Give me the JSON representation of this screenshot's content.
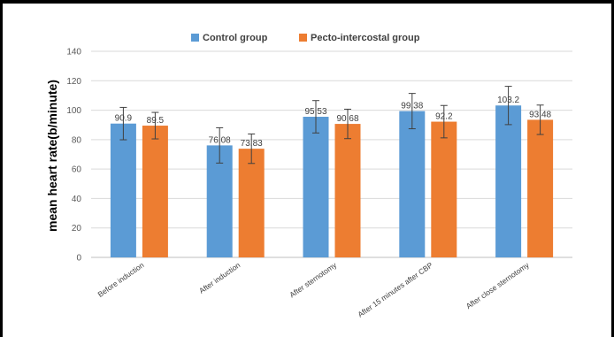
{
  "chart_data": {
    "type": "bar",
    "title": "",
    "xlabel": "",
    "ylabel": "mean heart rate(b/minute)",
    "ylim": [
      0,
      140
    ],
    "yticks": [
      0,
      20,
      40,
      60,
      80,
      100,
      120,
      140
    ],
    "grid": true,
    "legend_position": "top",
    "categories": [
      "Before induction",
      "After induction",
      "After sternotomy",
      "After 15 minutes after CBP",
      "After close sternotomy"
    ],
    "series": [
      {
        "name": "Control group",
        "color": "#5B9BD5",
        "values": [
          90.9,
          76.08,
          95.53,
          99.38,
          103.2
        ],
        "labels": [
          "90.9",
          "76.08",
          "95.53",
          "99.38",
          "103.2"
        ],
        "error": [
          11,
          12,
          11,
          12,
          13
        ]
      },
      {
        "name": "Pecto-intercostal group",
        "color": "#ED7D31",
        "values": [
          89.5,
          73.83,
          90.68,
          92.2,
          93.48
        ],
        "labels": [
          "89.5",
          "73.83",
          "90.68",
          "92.2",
          "93.48"
        ],
        "error": [
          9,
          10,
          10,
          11,
          10
        ]
      }
    ]
  }
}
